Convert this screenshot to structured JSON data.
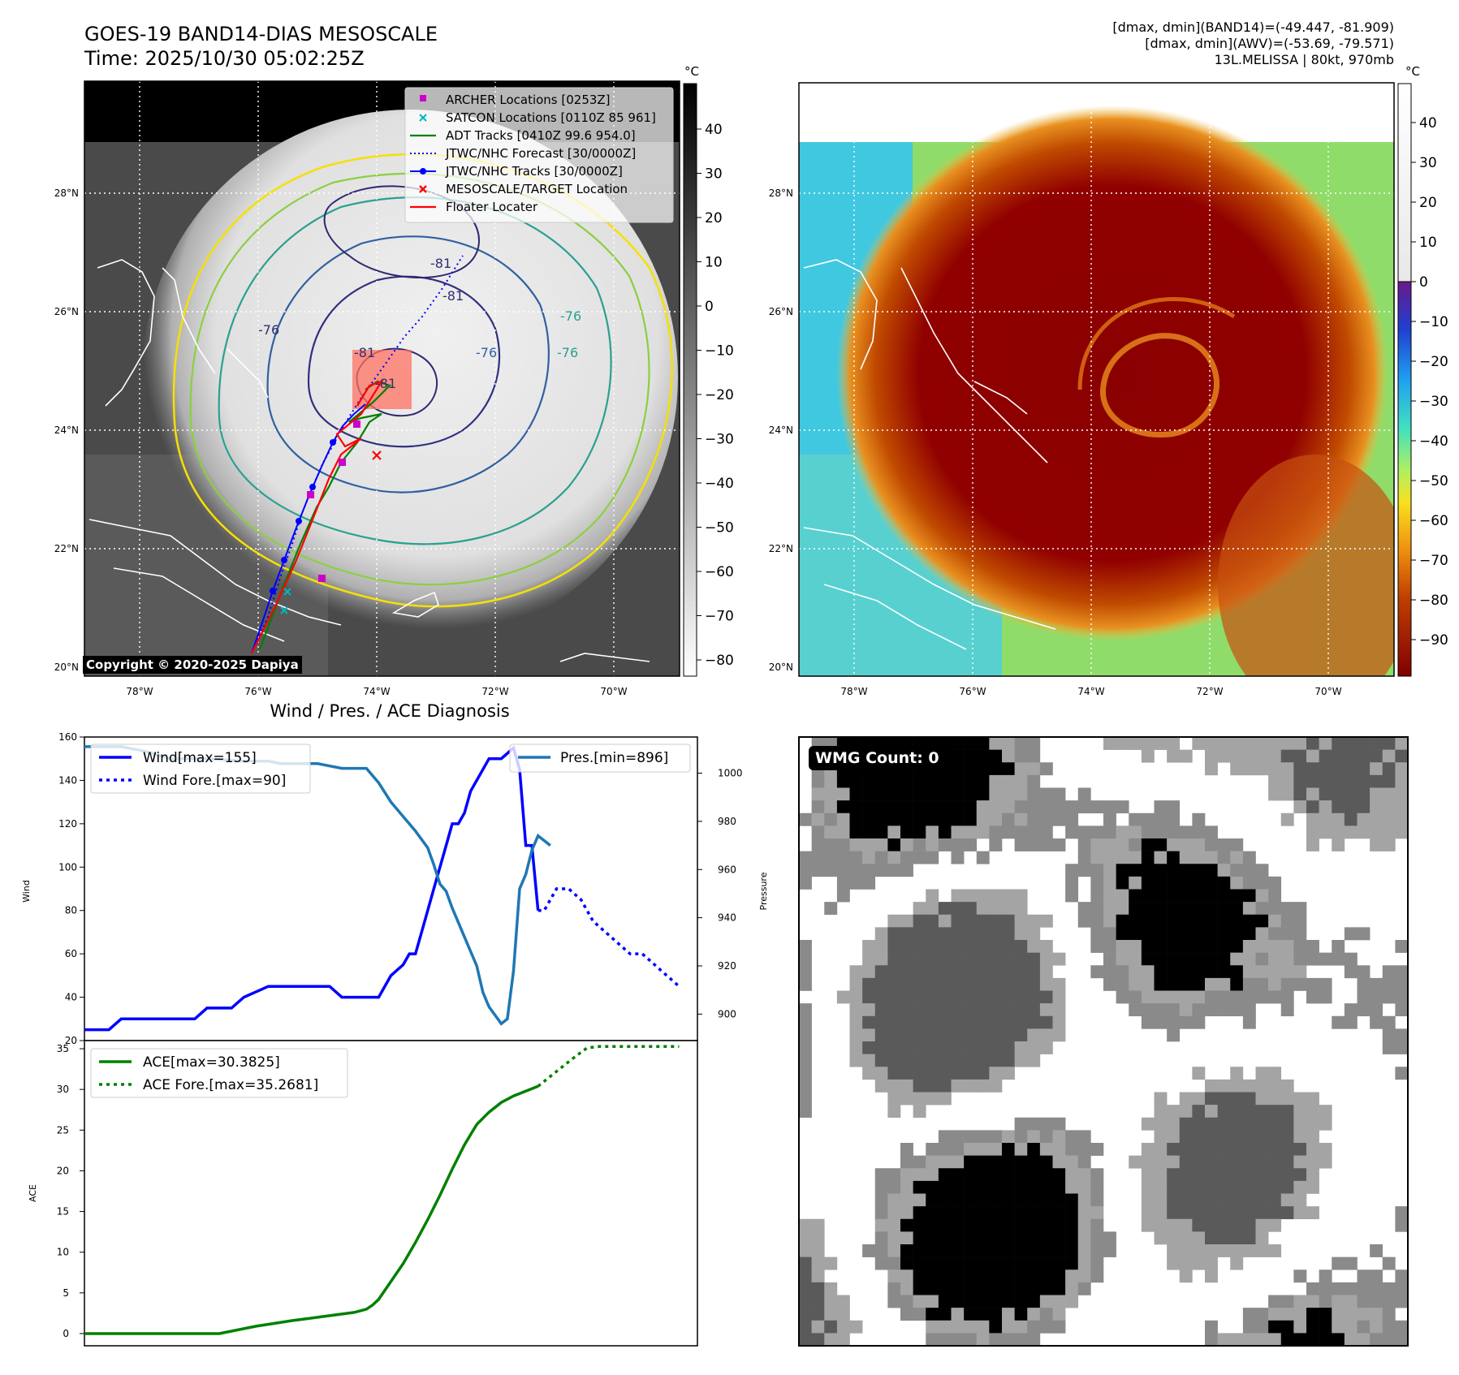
{
  "header": {
    "title_line1": "GOES-19 BAND14-DIAS MESOSCALE",
    "title_line2": "Time: 2025/10/30 05:02:25Z",
    "stats_line1": "[dmax, dmin](BAND14)=(-49.447, -81.909)",
    "stats_line2": "[dmax, dmin](AWV)=(-53.69, -79.571)",
    "stats_line3": "13L.MELISSA | 80kt, 970mb"
  },
  "map": {
    "lat_labels": [
      "28°N",
      "26°N",
      "24°N",
      "22°N",
      "20°N"
    ],
    "lon_labels": [
      "78°W",
      "76°W",
      "74°W",
      "72°W",
      "70°W"
    ],
    "contour_labels": [
      "-81",
      "-76",
      "-81",
      "-76",
      "-76",
      "-81",
      "-76",
      "-81"
    ],
    "copyright": "Copyright © 2020-2025 Dapiya",
    "legend": [
      {
        "label": "ARCHER Locations [0253Z]",
        "color": "#cc00cc"
      },
      {
        "label": "SATCON Locations [0110Z 85 961]",
        "color": "#00b8b8"
      },
      {
        "label": "ADT Tracks [0410Z 99.6 954.0]",
        "color": "#008000"
      },
      {
        "label": "JTWC/NHC Forecast [30/0000Z]",
        "color": "#0000ff"
      },
      {
        "label": "JTWC/NHC Tracks [30/0000Z]",
        "color": "#0000ff"
      },
      {
        "label": "MESOSCALE/TARGET Location",
        "color": "#ff0000"
      },
      {
        "label": "Floater Locater",
        "color": "#ff0000"
      }
    ]
  },
  "colorbar_left": {
    "unit": "°C",
    "ticks": [
      "40",
      "30",
      "20",
      "10",
      "0",
      "−10",
      "−20",
      "−30",
      "−40",
      "−50",
      "−60",
      "−70",
      "−80"
    ]
  },
  "colorbar_right": {
    "unit": "°C",
    "ticks": [
      "40",
      "30",
      "20",
      "10",
      "0",
      "−10",
      "−20",
      "−30",
      "−40",
      "−50",
      "−60",
      "−70",
      "−80",
      "−90"
    ]
  },
  "wmg": {
    "label": "WMG Count: 0"
  },
  "chart_data": [
    {
      "type": "line",
      "title": "Wind / Pres. / ACE Diagnosis",
      "ylabel": "Wind",
      "y2label": "Pressure",
      "ylim": [
        20,
        160
      ],
      "y2lim": [
        889,
        1015
      ],
      "xlim": [
        0,
        100
      ],
      "yticks": [
        "160",
        "140",
        "120",
        "100",
        "80",
        "60",
        "40",
        "20"
      ],
      "y2ticks": [
        "1000",
        "980",
        "960",
        "940",
        "920",
        "900"
      ],
      "series": [
        {
          "name": "Wind[max=155]",
          "color": "#0000ff",
          "style": "solid",
          "axis": "left",
          "x": [
            0,
            4,
            6,
            8,
            18,
            20,
            24,
            26,
            30,
            32,
            40,
            42,
            45,
            48,
            50,
            52,
            53,
            54,
            55,
            56,
            57,
            58,
            59,
            60,
            61,
            62,
            63,
            64,
            66,
            67,
            68,
            70,
            71,
            72,
            73,
            74
          ],
          "y": [
            25,
            25,
            30,
            30,
            30,
            35,
            35,
            40,
            45,
            45,
            45,
            40,
            40,
            40,
            50,
            55,
            60,
            60,
            70,
            80,
            90,
            100,
            110,
            120,
            120,
            125,
            135,
            140,
            150,
            150,
            150,
            155,
            145,
            110,
            110,
            80
          ]
        },
        {
          "name": "Wind Fore.[max=90]",
          "color": "#0000ff",
          "style": "dotted",
          "axis": "left",
          "x": [
            74,
            75,
            77,
            79,
            81,
            83,
            85,
            87,
            89,
            91,
            93,
            95,
            97
          ],
          "y": [
            80,
            80,
            90,
            90,
            85,
            75,
            70,
            65,
            60,
            60,
            55,
            50,
            45
          ]
        },
        {
          "name": "Pres.[min=896]",
          "color": "#1f77b4",
          "style": "solid",
          "axis": "right",
          "x": [
            0,
            6,
            10,
            14,
            20,
            26,
            30,
            32,
            34,
            36,
            38,
            42,
            46,
            48,
            50,
            52,
            54,
            56,
            57,
            58,
            59,
            60,
            62,
            64,
            65,
            66,
            68,
            69,
            70,
            71,
            72,
            73,
            74,
            75,
            76
          ],
          "y": [
            1011,
            1011,
            1009,
            1006,
            1006,
            1005,
            1005,
            1004,
            1004,
            1004,
            1004,
            1002,
            1002,
            996,
            988,
            982,
            976,
            969,
            962,
            954,
            951,
            944,
            932,
            920,
            909,
            903,
            896,
            898,
            918,
            952,
            958,
            968,
            974,
            972,
            970
          ]
        }
      ]
    },
    {
      "type": "line",
      "ylabel": "ACE",
      "ylim": [
        -1.5,
        36
      ],
      "xlim": [
        0,
        100
      ],
      "yticks": [
        "35",
        "30",
        "25",
        "20",
        "15",
        "10",
        "5",
        "0"
      ],
      "series": [
        {
          "name": "ACE[max=30.3825]",
          "color": "#008000",
          "style": "solid",
          "x": [
            0,
            10,
            22,
            28,
            34,
            40,
            44,
            46,
            47,
            48,
            50,
            52,
            54,
            56,
            58,
            60,
            62,
            64,
            66,
            68,
            70,
            72,
            74
          ],
          "y": [
            0,
            0,
            0,
            0.9,
            1.6,
            2.2,
            2.6,
            3.0,
            3.5,
            4.2,
            6.4,
            8.6,
            11.2,
            14.0,
            17.0,
            20.2,
            23.2,
            25.7,
            27.2,
            28.4,
            29.2,
            29.8,
            30.38
          ]
        },
        {
          "name": "ACE Fore.[max=35.2681]",
          "color": "#008000",
          "style": "dotted",
          "x": [
            74,
            76,
            78,
            80,
            82,
            84,
            97
          ],
          "y": [
            30.38,
            31.6,
            32.8,
            34.0,
            35.1,
            35.27,
            35.27
          ]
        }
      ]
    }
  ]
}
